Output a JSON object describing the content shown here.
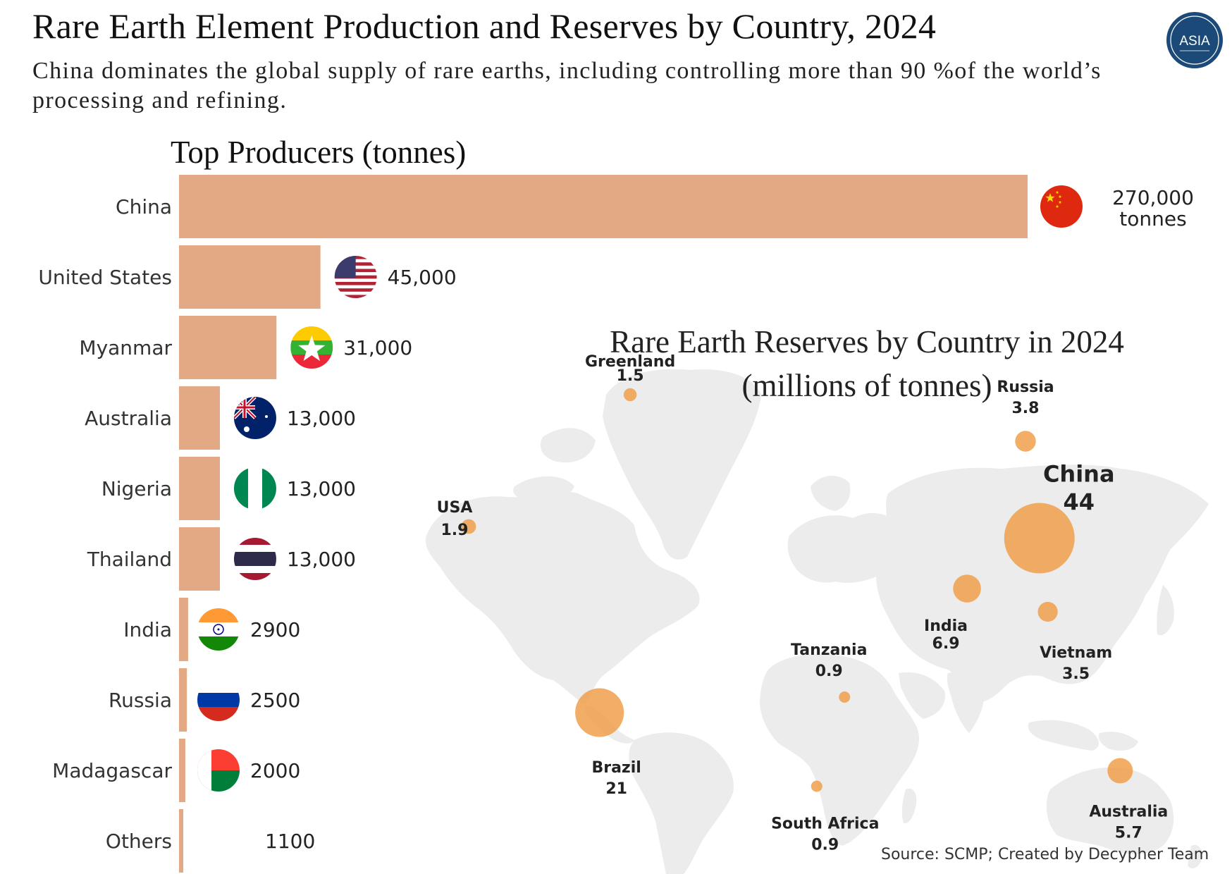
{
  "title": "Rare Earth Element Production and Reserves by Country, 2024",
  "subtitle": "China dominates the global supply of rare earths, including controlling more than 90 %of the world’s processing and refining.",
  "logo_text": "ASIA",
  "source": "Source: SCMP; Created by Decypher Team",
  "colors": {
    "bar": "#e3a884",
    "bubble": "#f0a04b",
    "land": "#ececec",
    "logo": "#1b4a78"
  },
  "chart_data": [
    {
      "type": "bar",
      "orientation": "horizontal",
      "title": "Top Producers (tonnes)",
      "categories": [
        "China",
        "United States",
        "Myanmar",
        "Australia",
        "Nigeria",
        "Thailand",
        "India",
        "Russia",
        "Madagascar",
        "Others"
      ],
      "values": [
        270000,
        45000,
        31000,
        13000,
        13000,
        13000,
        2900,
        2500,
        2000,
        1100
      ],
      "value_labels": [
        "270,000\ntonnes",
        "45,000",
        "31,000",
        "13,000",
        "13,000",
        "13,000",
        "2900",
        "2500",
        "2000",
        "1100"
      ],
      "flags": [
        "china-flag",
        "usa-flag",
        "myanmar-flag",
        "australia-flag",
        "nigeria-flag",
        "thailand-flag",
        "india-flag",
        "russia-flag",
        "madagascar-flag",
        ""
      ]
    },
    {
      "type": "bubble-map",
      "title": "Rare Earth Reserves by Country in 2024\n(millions of tonnes)",
      "points": [
        {
          "name": "Greenland",
          "value": 1.5,
          "lon": -42,
          "lat": 72
        },
        {
          "name": "Russia",
          "value": 3.8,
          "lon": 100,
          "lat": 60
        },
        {
          "name": "USA",
          "value": 1.9,
          "lon": -100,
          "lat": 38
        },
        {
          "name": "China",
          "value": 44,
          "lon": 105,
          "lat": 35
        },
        {
          "name": "India",
          "value": 6.9,
          "lon": 79,
          "lat": 22
        },
        {
          "name": "Vietnam",
          "value": 3.5,
          "lon": 108,
          "lat": 16
        },
        {
          "name": "Tanzania",
          "value": 0.9,
          "lon": 35,
          "lat": -6
        },
        {
          "name": "Brazil",
          "value": 21,
          "lon": -53,
          "lat": -10
        },
        {
          "name": "South Africa",
          "value": 0.9,
          "lon": 25,
          "lat": -29
        },
        {
          "name": "Australia",
          "value": 5.7,
          "lon": 134,
          "lat": -25
        }
      ]
    }
  ]
}
